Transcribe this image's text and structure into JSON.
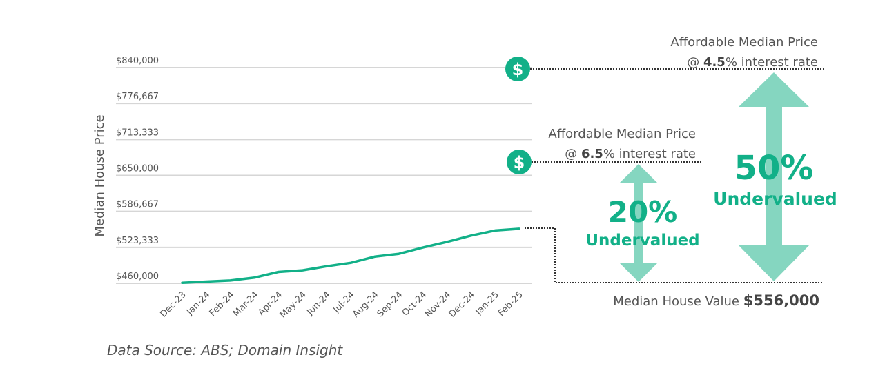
{
  "chart_data": {
    "type": "line",
    "ylabel": "Median House Price",
    "xlabel": "",
    "categories": [
      "Dec-23",
      "Jan-24",
      "Feb-24",
      "Mar-24",
      "Apr-24",
      "May-24",
      "Jun-24",
      "Jul-24",
      "Aug-24",
      "Sep-24",
      "Oct-24",
      "Nov-24",
      "Dec-24",
      "Jan-25",
      "Feb-25"
    ],
    "values": [
      461000,
      463000,
      465000,
      470000,
      480000,
      483000,
      490000,
      496000,
      507000,
      512000,
      523000,
      533000,
      544000,
      553000,
      556000
    ],
    "ylim": [
      460000,
      840000
    ],
    "yticks": [
      "$460,000",
      "$523,333",
      "$586,667",
      "$650,000",
      "$713,333",
      "$776,667",
      "$840,000"
    ],
    "grid": true,
    "line_color": "#12b088",
    "arrow_color": "#85d6c0",
    "reference_lines": [
      {
        "value": 840000,
        "label_line1": "Affordable Median Price",
        "label_prefix": "@ ",
        "rate": "4.5",
        "label_suffix": "% interest rate",
        "icon": "dollar-circle-icon",
        "gap_pct": "50%",
        "gap_label": "Undervalued"
      },
      {
        "value": 667200,
        "label_line1": "Affordable Median Price",
        "label_prefix": "@ ",
        "rate": "6.5",
        "label_suffix": "% interest rate",
        "icon": "dollar-circle-icon",
        "gap_pct": "20%",
        "gap_label": "Undervalued"
      }
    ],
    "median": {
      "label": "Median House Value ",
      "value": "$556,000"
    },
    "source": "Data Source: ABS; Domain Insight"
  }
}
